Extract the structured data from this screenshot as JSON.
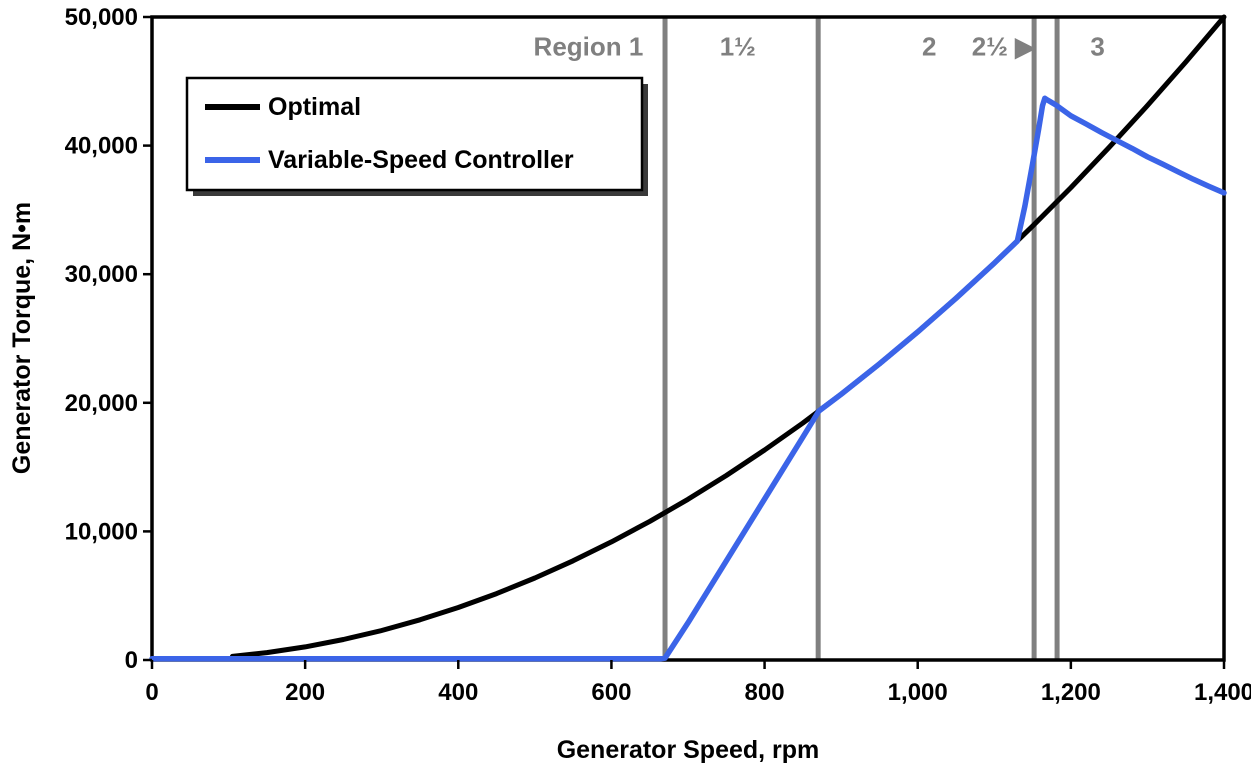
{
  "chart_data": {
    "type": "line",
    "title": "",
    "xlabel": "Generator Speed, rpm",
    "ylabel": "Generator Torque, N•m",
    "xlim": [
      0,
      1400
    ],
    "ylim": [
      0,
      50000
    ],
    "x_ticks": [
      0,
      200,
      400,
      600,
      800,
      1000,
      1200,
      1400
    ],
    "y_ticks": [
      0,
      10000,
      20000,
      30000,
      40000,
      50000
    ],
    "grid": false,
    "legend_position": "top-left",
    "series": [
      {
        "name": "Optimal",
        "color": "#000000",
        "width": 5,
        "points": [
          [
            105,
            281
          ],
          [
            150,
            574
          ],
          [
            200,
            1020
          ],
          [
            250,
            1594
          ],
          [
            300,
            2296
          ],
          [
            350,
            3125
          ],
          [
            400,
            4082
          ],
          [
            450,
            5166
          ],
          [
            500,
            6378
          ],
          [
            550,
            7717
          ],
          [
            600,
            9184
          ],
          [
            650,
            10778
          ],
          [
            700,
            12500
          ],
          [
            750,
            14349
          ],
          [
            800,
            16327
          ],
          [
            850,
            18431
          ],
          [
            900,
            20663
          ],
          [
            950,
            23023
          ],
          [
            1000,
            25510
          ],
          [
            1050,
            28125
          ],
          [
            1100,
            30867
          ],
          [
            1150,
            33737
          ],
          [
            1200,
            36735
          ],
          [
            1250,
            39860
          ],
          [
            1300,
            43112
          ],
          [
            1350,
            46492
          ],
          [
            1400,
            50000
          ]
        ]
      },
      {
        "name": "Variable-Speed Controller",
        "color": "#3B64E8",
        "width": 5.5,
        "points": [
          [
            0,
            100
          ],
          [
            150,
            100
          ],
          [
            300,
            100
          ],
          [
            450,
            100
          ],
          [
            600,
            100
          ],
          [
            665,
            100
          ],
          [
            670,
            150
          ],
          [
            700,
            2890
          ],
          [
            750,
            7705
          ],
          [
            800,
            12520
          ],
          [
            850,
            17335
          ],
          [
            871,
            19366
          ],
          [
            900,
            20663
          ],
          [
            950,
            23023
          ],
          [
            1000,
            25510
          ],
          [
            1050,
            28125
          ],
          [
            1100,
            30867
          ],
          [
            1130,
            32573
          ],
          [
            1140,
            35300
          ],
          [
            1150,
            38600
          ],
          [
            1158,
            41300
          ],
          [
            1163,
            43100
          ],
          [
            1166,
            43680
          ],
          [
            1170,
            43520
          ],
          [
            1180,
            43180
          ],
          [
            1200,
            42320
          ],
          [
            1220,
            41680
          ],
          [
            1240,
            41020
          ],
          [
            1260,
            40400
          ],
          [
            1280,
            39780
          ],
          [
            1300,
            39130
          ],
          [
            1320,
            38560
          ],
          [
            1340,
            37960
          ],
          [
            1360,
            37380
          ],
          [
            1380,
            36840
          ],
          [
            1400,
            36320
          ]
        ]
      }
    ],
    "regions": {
      "color": "#808080",
      "line_width": 5,
      "boundaries": [
        670,
        870,
        1152,
        1182
      ],
      "label_y": 47000,
      "labels": [
        {
          "text": "Region 1",
          "x": 570
        },
        {
          "text": "1½",
          "x": 765
        },
        {
          "text": "2",
          "x": 1015
        },
        {
          "text": "2½ ▶",
          "x": 1112
        },
        {
          "text": "3",
          "x": 1235
        }
      ]
    }
  }
}
